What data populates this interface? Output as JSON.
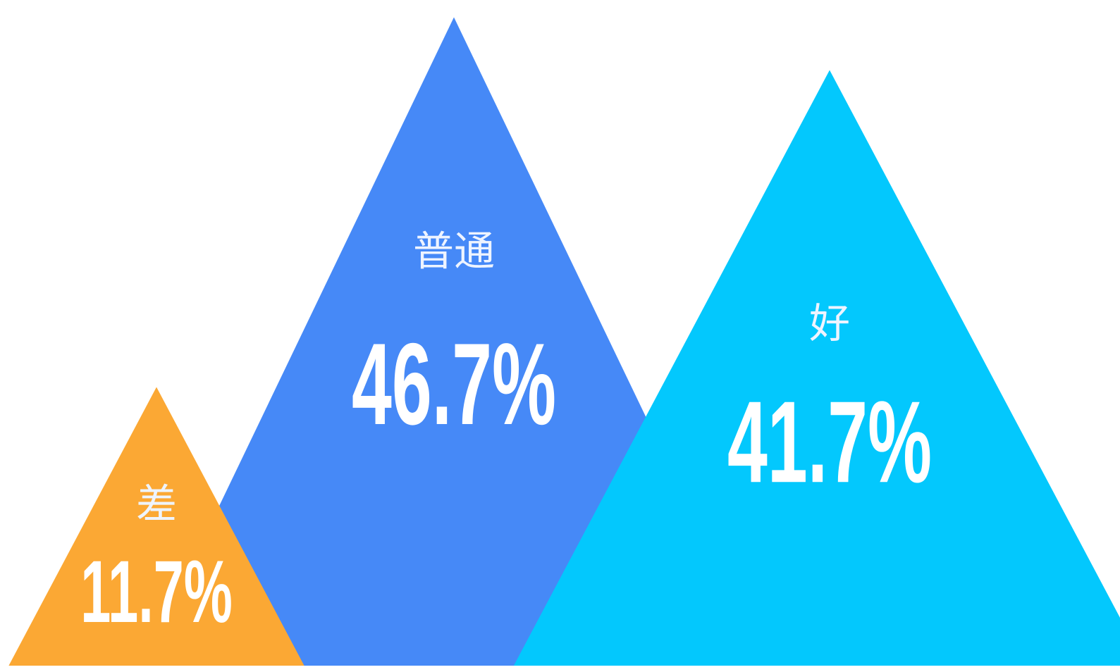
{
  "chart_data": {
    "type": "triangle",
    "categories": [
      "差",
      "普通",
      "好"
    ],
    "values": [
      11.7,
      46.7,
      41.7
    ],
    "value_labels": [
      "11.7%",
      "46.7%",
      "41.7%"
    ],
    "colors": [
      "#fba834",
      "#4689f7",
      "#03c8fd"
    ]
  }
}
